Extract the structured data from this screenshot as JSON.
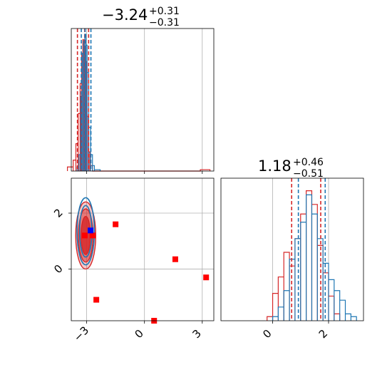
{
  "colors": {
    "red": "#d62728",
    "blue": "#1f77b4",
    "grid": "#b0b0b0",
    "marker_red": "#ff0000",
    "marker_blue": "#0000ff"
  },
  "titles": {
    "p1": {
      "main": "−3.24",
      "sup": "+0.31",
      "sub": "−0.31"
    },
    "p2": {
      "main": "1.18",
      "sup": "+0.46",
      "sub": "−0.51"
    }
  },
  "chart_data": [
    {
      "type": "histogram",
      "panel": "top-left marginal",
      "xlim": [
        -3.8,
        3.6
      ],
      "x_ticks": [
        -3,
        0,
        3
      ],
      "quantiles": {
        "red": [
          -3.48,
          -3.1,
          -2.9
        ],
        "blue": [
          -3.28,
          -3.08,
          -2.78
        ]
      },
      "series": [
        {
          "color": "red",
          "bins": [
            [
              -4.0,
              -3.7,
              0.03
            ],
            [
              -3.7,
              -3.56,
              0.08
            ],
            [
              -3.56,
              -3.44,
              0.2
            ],
            [
              -3.44,
              -3.34,
              0.42
            ],
            [
              -3.34,
              -3.26,
              0.64
            ],
            [
              -3.26,
              -3.2,
              0.86
            ],
            [
              -3.2,
              -3.14,
              0.96
            ],
            [
              -3.14,
              -3.08,
              0.9
            ],
            [
              -3.08,
              -3.0,
              0.8
            ],
            [
              -3.0,
              -2.92,
              0.4
            ],
            [
              -2.92,
              -2.84,
              0.14
            ],
            [
              -2.84,
              -2.7,
              0.04
            ],
            [
              2.9,
              3.4,
              0.01
            ]
          ]
        },
        {
          "color": "blue",
          "bins": [
            [
              -3.5,
              -3.4,
              0.03
            ],
            [
              -3.4,
              -3.3,
              0.12
            ],
            [
              -3.3,
              -3.22,
              0.55
            ],
            [
              -3.22,
              -3.16,
              0.86
            ],
            [
              -3.16,
              -3.1,
              0.95
            ],
            [
              -3.1,
              -3.04,
              1.0
            ],
            [
              -3.04,
              -2.98,
              0.92
            ],
            [
              -2.98,
              -2.9,
              0.72
            ],
            [
              -2.9,
              -2.8,
              0.32
            ],
            [
              -2.8,
              -2.7,
              0.12
            ],
            [
              -2.7,
              -2.6,
              0.04
            ],
            [
              -2.6,
              -2.3,
              0.01
            ]
          ]
        }
      ]
    },
    {
      "type": "scatter",
      "panel": "bottom-left 2D",
      "xlim": [
        -3.8,
        3.6
      ],
      "ylim": [
        -1.85,
        3.25
      ],
      "x_ticks": [
        -3,
        0,
        3
      ],
      "y_ticks": [
        0,
        2
      ],
      "contours_red": [
        {
          "cx": -3.05,
          "cy": 1.2,
          "rx": 0.52,
          "ry": 1.2
        },
        {
          "cx": -3.05,
          "cy": 1.2,
          "rx": 0.38,
          "ry": 0.95
        },
        {
          "cx": -3.05,
          "cy": 1.2,
          "rx": 0.24,
          "ry": 0.68
        }
      ],
      "contours_blue": [
        {
          "cx": -3.05,
          "cy": 1.35,
          "rx": 0.45,
          "ry": 1.2
        },
        {
          "cx": -3.05,
          "cy": 1.35,
          "rx": 0.32,
          "ry": 0.92
        }
      ],
      "points_red": [
        [
          -1.5,
          1.6
        ],
        [
          1.6,
          0.35
        ],
        [
          3.2,
          -0.3
        ],
        [
          -2.5,
          -1.1
        ],
        [
          0.5,
          -1.85
        ]
      ],
      "points_blue": [
        [
          -2.8,
          1.38
        ]
      ],
      "points_red_center": [
        [
          -3.1,
          1.2
        ],
        [
          -2.7,
          1.2
        ]
      ]
    },
    {
      "type": "histogram",
      "panel": "bottom-right marginal",
      "xlim": [
        -1.85,
        3.25
      ],
      "x_ticks": [
        0,
        2
      ],
      "quantiles": {
        "red": [
          0.68,
          1.72
        ],
        "blue": [
          0.92,
          1.88
        ]
      },
      "series": [
        {
          "color": "red",
          "bins": [
            [
              -0.2,
              0.0,
              0.03
            ],
            [
              0.0,
              0.2,
              0.2
            ],
            [
              0.2,
              0.4,
              0.32
            ],
            [
              0.4,
              0.6,
              0.5
            ],
            [
              0.6,
              0.8,
              0.4
            ],
            [
              0.8,
              1.0,
              0.6
            ],
            [
              1.0,
              1.2,
              0.78
            ],
            [
              1.2,
              1.4,
              0.95
            ],
            [
              1.4,
              1.6,
              0.85
            ],
            [
              1.6,
              1.8,
              0.55
            ],
            [
              1.8,
              2.0,
              0.35
            ],
            [
              2.0,
              2.2,
              0.18
            ],
            [
              2.2,
              2.4,
              0.05
            ]
          ]
        },
        {
          "color": "blue",
          "bins": [
            [
              0.0,
              0.2,
              0.03
            ],
            [
              0.2,
              0.4,
              0.1
            ],
            [
              0.4,
              0.6,
              0.22
            ],
            [
              0.6,
              0.8,
              0.45
            ],
            [
              0.8,
              1.0,
              0.6
            ],
            [
              1.0,
              1.2,
              0.72
            ],
            [
              1.2,
              1.4,
              0.92
            ],
            [
              1.4,
              1.6,
              0.78
            ],
            [
              1.6,
              1.8,
              0.6
            ],
            [
              1.8,
              2.0,
              0.42
            ],
            [
              2.0,
              2.2,
              0.3
            ],
            [
              2.2,
              2.4,
              0.22
            ],
            [
              2.4,
              2.6,
              0.15
            ],
            [
              2.6,
              2.8,
              0.05
            ],
            [
              2.8,
              3.0,
              0.03
            ]
          ]
        }
      ]
    }
  ]
}
